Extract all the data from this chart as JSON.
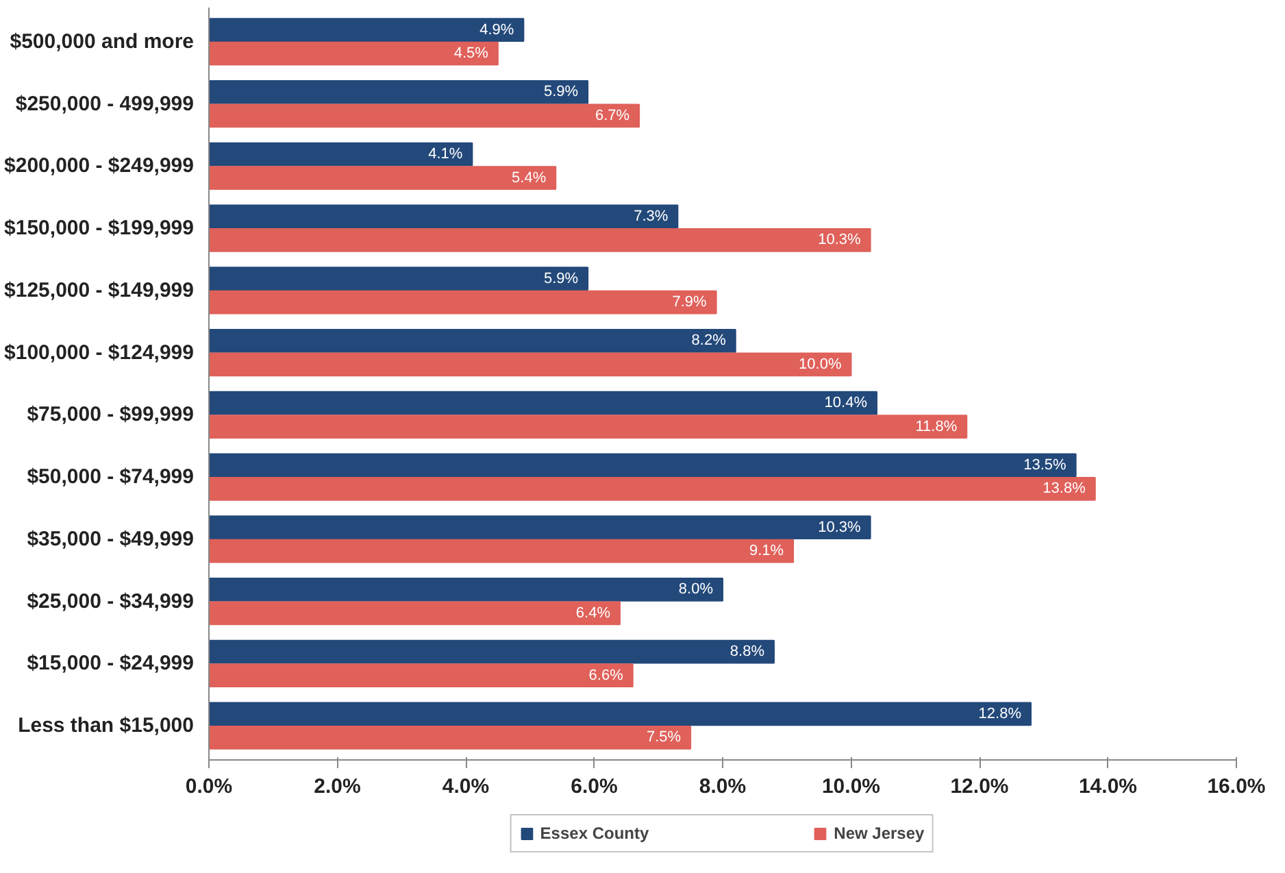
{
  "chart_data": {
    "type": "bar",
    "orientation": "horizontal",
    "categories": [
      "$500,000 and more",
      "$250,000 - 499,999",
      "$200,000 - $249,999",
      "$150,000 - $199,999",
      "$125,000 - $149,999",
      "$100,000 - $124,999",
      "$75,000 - $99,999",
      "$50,000 - $74,999",
      "$35,000 - $49,999",
      "$25,000 - $34,999",
      "$15,000 - $24,999",
      "Less than $15,000"
    ],
    "series": [
      {
        "name": "Essex County",
        "color": "#23497a",
        "values": [
          4.9,
          5.9,
          4.1,
          7.3,
          5.9,
          8.2,
          10.4,
          13.5,
          10.3,
          8.0,
          8.8,
          12.8
        ],
        "value_labels": [
          "4.9%",
          "5.9%",
          "4.1%",
          "7.3%",
          "5.9%",
          "8.2%",
          "10.4%",
          "13.5%",
          "10.3%",
          "8.0%",
          "8.8%",
          "12.8%"
        ]
      },
      {
        "name": "New Jersey",
        "color": "#e0605a",
        "values": [
          4.5,
          6.7,
          5.4,
          10.3,
          7.9,
          10.0,
          11.8,
          13.8,
          9.1,
          6.4,
          6.6,
          7.5
        ],
        "value_labels": [
          "4.5%",
          "6.7%",
          "5.4%",
          "10.3%",
          "7.9%",
          "10.0%",
          "11.8%",
          "13.8%",
          "9.1%",
          "6.4%",
          "6.6%",
          "7.5%"
        ]
      }
    ],
    "xlim": [
      0,
      16
    ],
    "xticks": [
      {
        "value": 0,
        "label": "0.0%"
      },
      {
        "value": 2,
        "label": "2.0%"
      },
      {
        "value": 4,
        "label": "4.0%"
      },
      {
        "value": 6,
        "label": "6.0%"
      },
      {
        "value": 8,
        "label": "8.0%"
      },
      {
        "value": 10,
        "label": "10.0%"
      },
      {
        "value": 12,
        "label": "12.0%"
      },
      {
        "value": 14,
        "label": "14.0%"
      },
      {
        "value": 16,
        "label": "16.0%"
      }
    ],
    "grid": false,
    "legend": "bottom"
  }
}
